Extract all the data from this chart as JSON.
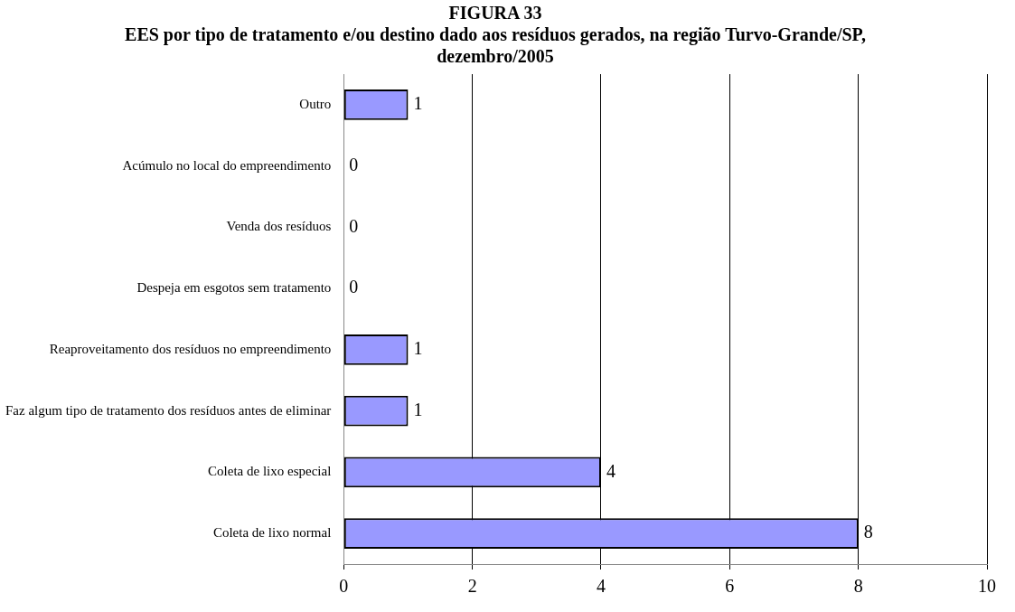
{
  "chart_data": {
    "type": "bar",
    "orientation": "horizontal",
    "title": "FIGURA 33",
    "subtitle": "EES por tipo de tratamento e/ou destino dado aos resíduos gerados, na região Turvo-Grande/SP, dezembro/2005",
    "categories": [
      "Outro",
      "Acúmulo no local do empreendimento",
      "Venda dos resíduos",
      "Despeja em esgotos sem tratamento",
      "Reaproveitamento dos resíduos no empreendimento",
      "Faz algum tipo de tratamento dos resíduos antes de eliminar",
      "Coleta de lixo especial",
      "Coleta de lixo normal"
    ],
    "values": [
      1,
      0,
      0,
      0,
      1,
      1,
      4,
      8
    ],
    "color": "#9999ff",
    "xlim": [
      0,
      10
    ],
    "xticks": [
      0,
      2,
      4,
      6,
      8,
      10
    ],
    "grid": "x",
    "legend": false,
    "data_labels": true
  }
}
